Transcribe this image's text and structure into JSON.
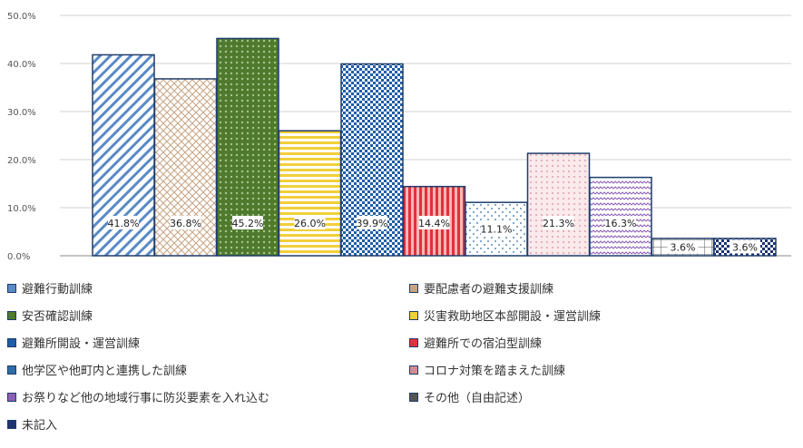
{
  "chart_data": {
    "type": "bar",
    "yticks": [
      "0.0%",
      "10.0%",
      "20.0%",
      "30.0%",
      "40.0%",
      "50.0%"
    ],
    "ylim": [
      0,
      50
    ],
    "grid": true,
    "legend_position": "bottom",
    "series": [
      {
        "name": "避難行動訓練",
        "value": 41.8,
        "label": "41.8%",
        "color": "#5a8ac6"
      },
      {
        "name": "要配慮者の避難支援訓練",
        "value": 36.8,
        "label": "36.8%",
        "color": "#c9a383"
      },
      {
        "name": "安否確認訓練",
        "value": 45.2,
        "label": "45.2%",
        "color": "#4f7a2e"
      },
      {
        "name": "災害救助地区本部開設・運営訓練",
        "value": 26.0,
        "label": "26.0%",
        "color": "#f2cf3a"
      },
      {
        "name": "避難所開設・運営訓練",
        "value": 39.9,
        "label": "39.9%",
        "color": "#1f5da8"
      },
      {
        "name": "避難所での宿泊型訓練",
        "value": 14.4,
        "label": "14.4%",
        "color": "#e0323a"
      },
      {
        "name": "他学区や他町内と連携した訓練",
        "value": 11.1,
        "label": "11.1%",
        "color": "#2e6ca8"
      },
      {
        "name": "コロナ対策を踏まえた訓練",
        "value": 21.3,
        "label": "21.3%",
        "color": "#d48a95"
      },
      {
        "name": "お祭りなど他の地域行事に防災要素を入れ込む",
        "value": 16.3,
        "label": "16.3%",
        "color": "#8a5fb5"
      },
      {
        "name": "その他（自由記述）",
        "value": 3.6,
        "label": "3.6%",
        "color": "#555555"
      },
      {
        "name": "未記入",
        "value": 3.6,
        "label": "3.6%",
        "color": "#1f3470"
      }
    ]
  },
  "legend": [
    {
      "label": "避難行動訓練",
      "color": "#5a8ac6"
    },
    {
      "label": "要配慮者の避難支援訓練",
      "color": "#c9a383"
    },
    {
      "label": "安否確認訓練",
      "color": "#4f7a2e"
    },
    {
      "label": "災害救助地区本部開設・運営訓練",
      "color": "#f2cf3a"
    },
    {
      "label": "避難所開設・運営訓練",
      "color": "#1f5da8"
    },
    {
      "label": "避難所での宿泊型訓練",
      "color": "#e0323a"
    },
    {
      "label": "他学区や他町内と連携した訓練",
      "color": "#2e6ca8"
    },
    {
      "label": "コロナ対策を踏まえた訓練",
      "color": "#d48a95"
    },
    {
      "label": "お祭りなど他の地域行事に防災要素を入れ込む",
      "color": "#8a5fb5"
    },
    {
      "label": "その他（自由記述）",
      "color": "#555555"
    },
    {
      "label": "未記入",
      "color": "#1f3470"
    }
  ]
}
